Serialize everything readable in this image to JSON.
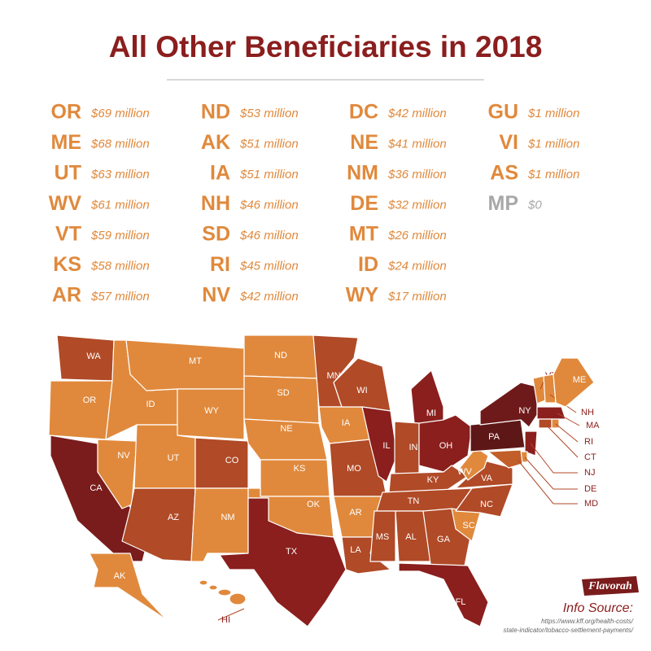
{
  "title": "All Other Beneficiaries in 2018",
  "entries": [
    {
      "code": "OR",
      "amount": "$69 million",
      "color": "#e0893c"
    },
    {
      "code": "ME",
      "amount": "$68 million",
      "color": "#e0893c"
    },
    {
      "code": "UT",
      "amount": "$63 million",
      "color": "#e0893c"
    },
    {
      "code": "WV",
      "amount": "$61 million",
      "color": "#e0893c"
    },
    {
      "code": "VT",
      "amount": "$59 million",
      "color": "#e0893c"
    },
    {
      "code": "KS",
      "amount": "$58 million",
      "color": "#e0893c"
    },
    {
      "code": "AR",
      "amount": "$57 million",
      "color": "#e0893c"
    },
    {
      "code": "ND",
      "amount": "$53 million",
      "color": "#e0893c"
    },
    {
      "code": "AK",
      "amount": "$51 million",
      "color": "#e0893c"
    },
    {
      "code": "IA",
      "amount": "$51 million",
      "color": "#e0893c"
    },
    {
      "code": "NH",
      "amount": "$46 million",
      "color": "#e0893c"
    },
    {
      "code": "SD",
      "amount": "$46 million",
      "color": "#e0893c"
    },
    {
      "code": "RI",
      "amount": "$45 million",
      "color": "#e0893c"
    },
    {
      "code": "NV",
      "amount": "$42 million",
      "color": "#e0893c"
    },
    {
      "code": "DC",
      "amount": "$42 million",
      "color": "#e0893c"
    },
    {
      "code": "NE",
      "amount": "$41 million",
      "color": "#e0893c"
    },
    {
      "code": "NM",
      "amount": "$36 million",
      "color": "#e0893c"
    },
    {
      "code": "DE",
      "amount": "$32 million",
      "color": "#e0893c"
    },
    {
      "code": "MT",
      "amount": "$26 million",
      "color": "#e0893c"
    },
    {
      "code": "ID",
      "amount": "$24 million",
      "color": "#e0893c"
    },
    {
      "code": "WY",
      "amount": "$17 million",
      "color": "#e0893c"
    },
    {
      "code": "GU",
      "amount": "$1 million",
      "color": "#e0893c"
    },
    {
      "code": "VI",
      "amount": "$1 million",
      "color": "#e0893c"
    },
    {
      "code": "AS",
      "amount": "$1 million",
      "color": "#e0893c"
    },
    {
      "code": "MP",
      "amount": "$0",
      "color": "#a8a8a8"
    }
  ],
  "map": {
    "states": [
      {
        "label": "WA",
        "color": "#b04a27"
      },
      {
        "label": "OR",
        "color": "#e0893c"
      },
      {
        "label": "CA",
        "color": "#7a1c1c"
      },
      {
        "label": "NV",
        "color": "#e0893c"
      },
      {
        "label": "ID",
        "color": "#e0893c"
      },
      {
        "label": "MT",
        "color": "#e0893c"
      },
      {
        "label": "WY",
        "color": "#e0893c"
      },
      {
        "label": "UT",
        "color": "#e0893c"
      },
      {
        "label": "AZ",
        "color": "#b04a27"
      },
      {
        "label": "CO",
        "color": "#b04a27"
      },
      {
        "label": "NM",
        "color": "#e0893c"
      },
      {
        "label": "ND",
        "color": "#e0893c"
      },
      {
        "label": "SD",
        "color": "#e0893c"
      },
      {
        "label": "NE",
        "color": "#e0893c"
      },
      {
        "label": "KS",
        "color": "#e0893c"
      },
      {
        "label": "OK",
        "color": "#e0893c"
      },
      {
        "label": "TX",
        "color": "#8a1f1d"
      },
      {
        "label": "MN",
        "color": "#b04a27"
      },
      {
        "label": "IA",
        "color": "#e0893c"
      },
      {
        "label": "MO",
        "color": "#b04a27"
      },
      {
        "label": "AR",
        "color": "#e0893c"
      },
      {
        "label": "LA",
        "color": "#b04a27"
      },
      {
        "label": "WI",
        "color": "#b04a27"
      },
      {
        "label": "IL",
        "color": "#8a1f1d"
      },
      {
        "label": "MI",
        "color": "#8a1f1d"
      },
      {
        "label": "IN",
        "color": "#b04a27"
      },
      {
        "label": "OH",
        "color": "#8a1f1d"
      },
      {
        "label": "KY",
        "color": "#b04a27"
      },
      {
        "label": "TN",
        "color": "#b04a27"
      },
      {
        "label": "MS",
        "color": "#b04a27"
      },
      {
        "label": "AL",
        "color": "#b04a27"
      },
      {
        "label": "GA",
        "color": "#b04a27"
      },
      {
        "label": "FL",
        "color": "#8a1f1d"
      },
      {
        "label": "SC",
        "color": "#e0893c"
      },
      {
        "label": "NC",
        "color": "#b04a27"
      },
      {
        "label": "VA",
        "color": "#b04a27"
      },
      {
        "label": "WV",
        "color": "#e0893c"
      },
      {
        "label": "PA",
        "color": "#5e1717"
      },
      {
        "label": "NY",
        "color": "#6e1a1a"
      },
      {
        "label": "VT",
        "color": "#e0893c"
      },
      {
        "label": "NH",
        "color": "#e0893c"
      },
      {
        "label": "ME",
        "color": "#e0893c"
      },
      {
        "label": "MA",
        "color": "#8a1f1d"
      },
      {
        "label": "CT",
        "color": "#b04a27"
      },
      {
        "label": "RI",
        "color": "#e0893c"
      },
      {
        "label": "NJ",
        "color": "#8a1f1d"
      },
      {
        "label": "DE",
        "color": "#e0893c"
      },
      {
        "label": "MD",
        "color": "#c25e2a"
      },
      {
        "label": "AK",
        "color": "#e0893c"
      },
      {
        "label": "HI",
        "color": "#e0893c"
      }
    ]
  },
  "logo": "Flavorah",
  "source": {
    "heading": "Info Source:",
    "lines": [
      "https://www.kff.org/health-costs/",
      "state-indicator/tobacco-settlement-payments/"
    ]
  }
}
